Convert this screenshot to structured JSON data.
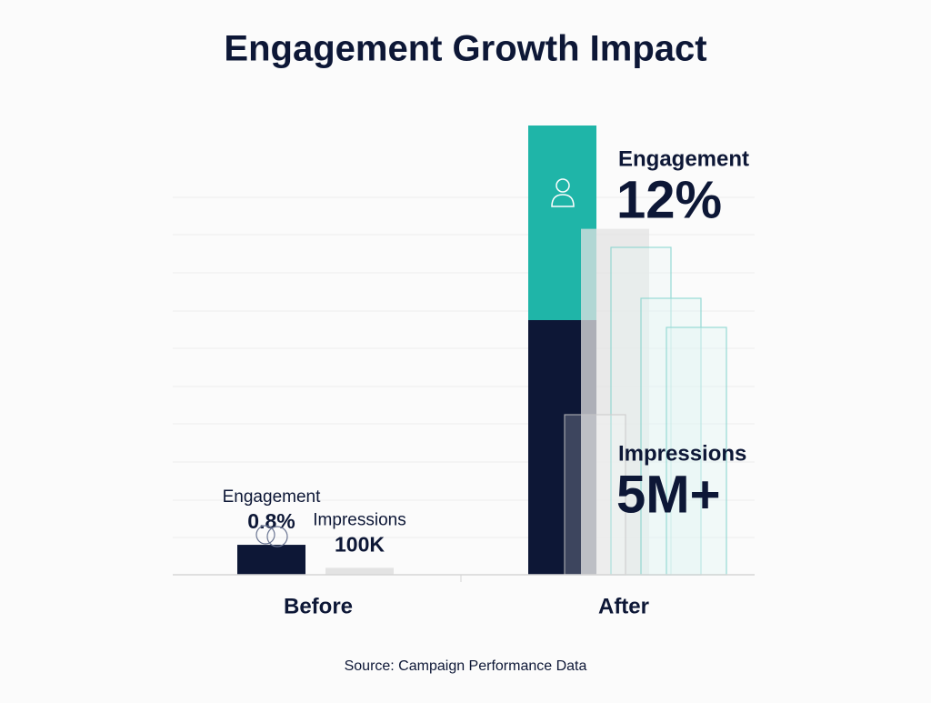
{
  "chart_data": {
    "type": "bar",
    "title": "Engagement Growth Impact",
    "categories": [
      "Before",
      "After"
    ],
    "series": [
      {
        "name": "Engagement",
        "color": "#0d1736",
        "values": [
          0.8,
          12
        ],
        "value_labels": [
          "0.8%",
          "12%"
        ]
      },
      {
        "name": "Impressions",
        "color": "#e3e3e3",
        "values": [
          100000,
          5000000
        ],
        "value_labels": [
          "100K",
          "5M+"
        ]
      }
    ],
    "source": "Source: Campaign Performance Data"
  }
}
